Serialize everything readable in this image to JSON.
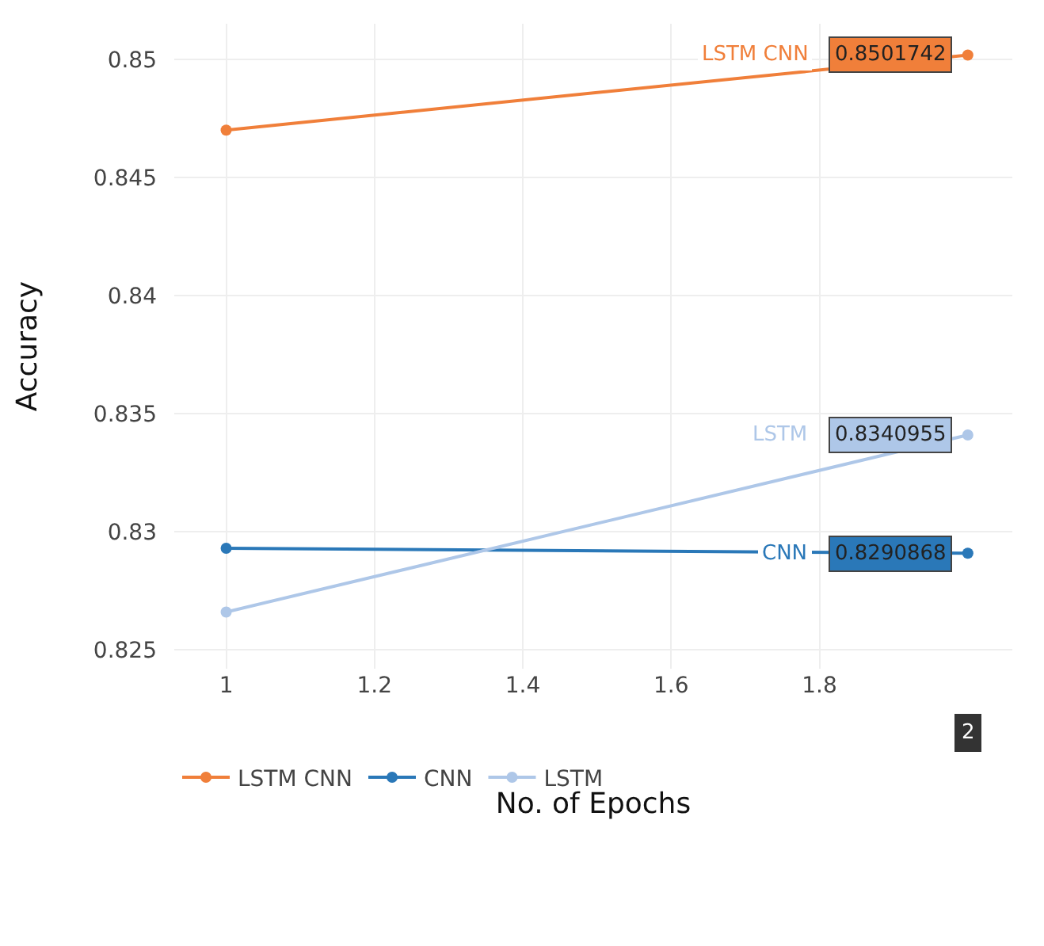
{
  "chart_data": {
    "type": "line",
    "xlabel": "No. of Epochs",
    "ylabel": "Accuracy",
    "x": [
      1,
      2
    ],
    "series": [
      {
        "name": "LSTM CNN",
        "color": "#f07f3a",
        "values": [
          0.847,
          0.8501742
        ],
        "value_labels": [
          null,
          "0.8501742"
        ]
      },
      {
        "name": "CNN",
        "color": "#2a78b8",
        "values": [
          0.8293,
          0.8290868
        ],
        "value_labels": [
          null,
          "0.8290868"
        ]
      },
      {
        "name": "LSTM",
        "color": "#aec7e8",
        "values": [
          0.8266,
          0.8340955
        ],
        "value_labels": [
          null,
          "0.8340955"
        ]
      }
    ],
    "xlim": [
      0.93,
      2.06
    ],
    "ylim": [
      0.8242,
      0.8515
    ],
    "xticks": [
      1,
      1.2,
      1.4,
      1.6,
      1.8
    ],
    "yticks": [
      0.825,
      0.83,
      0.835,
      0.84,
      0.845,
      0.85
    ],
    "annotations": [
      "2"
    ],
    "grid": true,
    "legend": "bottom",
    "marker": "circle",
    "line_style": "solid"
  }
}
